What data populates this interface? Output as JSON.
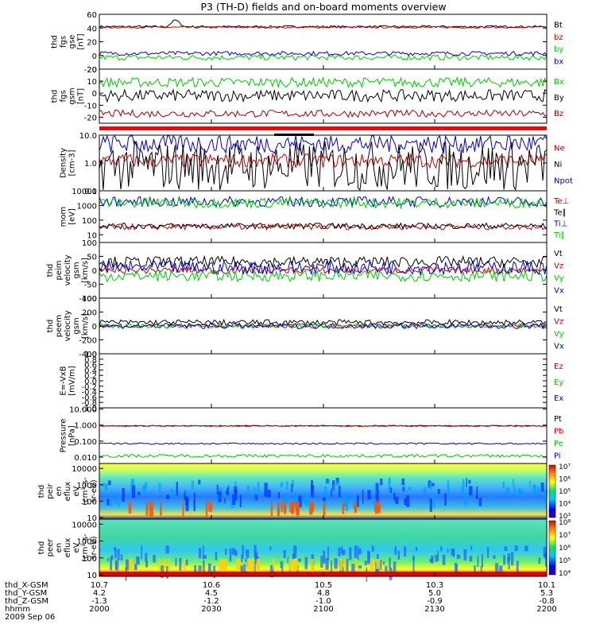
{
  "chart_data": {
    "type": "line",
    "title": "P3 (TH-D) fields and on-board moments overview",
    "panels": [
      {
        "id": "fgs_gse",
        "ylabel_lines": [
          "thd",
          "fgs",
          "gse",
          "[nT]"
        ],
        "ylim": [
          -20,
          60
        ],
        "ticks": [
          -20,
          0,
          20,
          40,
          60
        ],
        "series": [
          {
            "name": "Bt",
            "color": "#000000",
            "base": 42,
            "amp": 1.5,
            "spikes": [
              [
                0.17,
                10
              ]
            ]
          },
          {
            "name": "bz",
            "color": "#cc0000",
            "base": 41,
            "amp": 1.2
          },
          {
            "name": "by",
            "color": "#00cc00",
            "base": -3,
            "amp": 4
          },
          {
            "name": "bx",
            "color": "#0000cc",
            "base": 3,
            "amp": 3
          }
        ]
      },
      {
        "id": "fgs_gsm",
        "ylabel_lines": [
          "thd",
          "fgs",
          "gsm",
          "[nT]"
        ],
        "ylim": [
          -25,
          20
        ],
        "ticks": [
          -20,
          -10,
          0,
          10,
          20
        ],
        "series": [
          {
            "name": "Bx",
            "color": "#00cc00",
            "base": 9,
            "amp": 4
          },
          {
            "name": "By",
            "color": "#000000",
            "base": -2,
            "amp": 5
          },
          {
            "name": "Bz",
            "color": "#aa0000",
            "base": -17,
            "amp": 3
          }
        ]
      },
      {
        "id": "density",
        "ylabel_lines": [
          "Density",
          "[cm-3]"
        ],
        "log": true,
        "ylim": [
          0.1,
          10
        ],
        "ticks": [
          0.1,
          1.0,
          10.0
        ],
        "tick_labels": [
          "0.1",
          "1.0",
          "10.0"
        ],
        "series": [
          {
            "name": "Ne",
            "color": "#cc0000",
            "base": 1.2,
            "amp": 0.25
          },
          {
            "name": "Ni",
            "color": "#000000",
            "base": 0.8,
            "amp": 0.9
          },
          {
            "name": "Npot",
            "color": "#0000cc",
            "base": 5,
            "amp": 0.35
          }
        ]
      },
      {
        "id": "temperature",
        "ylabel_lines": [
          "mom",
          "[eV]"
        ],
        "log": true,
        "ylim": [
          3,
          10000
        ],
        "ticks": [
          10,
          100,
          1000,
          10000
        ],
        "tick_labels": [
          "10",
          "100",
          "1000",
          "10000"
        ],
        "series": [
          {
            "name": "Te⊥",
            "color": "#cc0000",
            "base": 35,
            "amp": 0.2
          },
          {
            "name": "Te∥",
            "color": "#000000",
            "base": 40,
            "amp": 0.2
          },
          {
            "name": "Ti⊥",
            "color": "#0000cc",
            "base": 1800,
            "amp": 0.35
          },
          {
            "name": "Ti∥",
            "color": "#00cc00",
            "base": 1500,
            "amp": 0.35
          }
        ]
      },
      {
        "id": "peim_velocity",
        "ylabel_lines": [
          "thd",
          "peim",
          "velocity",
          "gsm",
          "[km/s]"
        ],
        "ylim": [
          -100,
          100
        ],
        "ticks": [
          -100,
          -50,
          0,
          50,
          100
        ],
        "series": [
          {
            "name": "Vt",
            "color": "#000000",
            "base": 30,
            "amp": 20
          },
          {
            "name": "Vz",
            "color": "#cc0000",
            "base": 0,
            "amp": 12
          },
          {
            "name": "Vy",
            "color": "#00cc00",
            "base": -20,
            "amp": 20
          },
          {
            "name": "Vx",
            "color": "#0000cc",
            "base": 10,
            "amp": 25
          }
        ]
      },
      {
        "id": "peem_velocity",
        "ylabel_lines": [
          "thd",
          "peem",
          "velocity",
          "gsm",
          "[km/s]"
        ],
        "ylim": [
          -400,
          400
        ],
        "ticks": [
          -400,
          -200,
          0,
          200,
          400
        ],
        "series": [
          {
            "name": "Vt",
            "color": "#000000",
            "base": 50,
            "amp": 40
          },
          {
            "name": "Vz",
            "color": "#cc0000",
            "base": 0,
            "amp": 30
          },
          {
            "name": "Vy",
            "color": "#00cc00",
            "base": 0,
            "amp": 30
          },
          {
            "name": "Vx",
            "color": "#0000cc",
            "base": 0,
            "amp": 40
          }
        ]
      },
      {
        "id": "efield",
        "ylabel_lines": [
          "E=-VxB",
          "[mV/m]"
        ],
        "ylim": [
          -1,
          1
        ],
        "ticks": [
          -1.0,
          -0.8,
          -0.6,
          -0.4,
          -0.2,
          0.0,
          0.2,
          0.4,
          0.6,
          0.8,
          1.0
        ],
        "tick_labels": [
          "-1.0",
          "-0.8",
          "-0.6",
          "-0.4",
          "-0.2",
          "0.0",
          "0.2",
          "0.4",
          "0.6",
          "0.8",
          "1.0"
        ],
        "series": [
          {
            "name": "Ez",
            "color": "#cc0000"
          },
          {
            "name": "Ey",
            "color": "#00cc00"
          },
          {
            "name": "Ex",
            "color": "#0000cc"
          }
        ]
      },
      {
        "id": "pressure",
        "ylabel_lines": [
          "Pressure",
          "[nPa]"
        ],
        "log": true,
        "ylim": [
          0.004,
          12
        ],
        "ticks": [
          0.01,
          0.1,
          1,
          10
        ],
        "tick_labels": [
          "0.010",
          "0.100",
          "1.000",
          "10.000"
        ],
        "series": [
          {
            "name": "Pt",
            "color": "#000000",
            "base": 0.9,
            "amp": 0.03
          },
          {
            "name": "Pb",
            "color": "#cc0000",
            "base": 0.88,
            "amp": 0.03
          },
          {
            "name": "Pe",
            "color": "#00cc00",
            "base": 0.012,
            "amp": 0.1
          },
          {
            "name": "Pi",
            "color": "#0000cc",
            "base": 0.07,
            "amp": 0.05
          }
        ]
      },
      {
        "id": "peir_spectrogram",
        "type": "spectrogram",
        "ylabel_lines": [
          "thd",
          "peir",
          "en",
          "eflux",
          "eV",
          "(cm²-s-",
          "sr-eV)"
        ],
        "ylim": [
          8,
          20000
        ],
        "ticks": [
          10,
          100,
          1000,
          10000
        ],
        "tick_labels": [
          "10",
          "100",
          "1000",
          "10000"
        ],
        "colorbar": {
          "ticks": [
            "10³",
            "10⁴",
            "10⁵",
            "10⁶",
            "10⁷"
          ]
        }
      },
      {
        "id": "peer_spectrogram",
        "type": "spectrogram",
        "ylabel_lines": [
          "thd",
          "peer",
          "en",
          "eflux",
          "eV",
          "(cm²-s-",
          "sr-eV)"
        ],
        "ylim": [
          8,
          20000
        ],
        "ticks": [
          10,
          100,
          1000,
          10000
        ],
        "tick_labels": [
          "10",
          "100",
          "1000",
          "10000"
        ],
        "colorbar": {
          "ticks": [
            "10⁴",
            "10⁵",
            "10⁶",
            "10⁷",
            "10⁸"
          ]
        }
      }
    ],
    "x_axis": {
      "rows": [
        {
          "label": "thd_X-GSM",
          "values": [
            "10.7",
            "10.6",
            "10.5",
            "10.3",
            "10.1"
          ]
        },
        {
          "label": "thd_Y-GSM",
          "values": [
            "4.2",
            "4.5",
            "4.8",
            "5.0",
            "5.3"
          ]
        },
        {
          "label": "thd_Z-GSM",
          "values": [
            "-1.3",
            "-1.2",
            "-1.0",
            "-0.9",
            "-0.8"
          ]
        },
        {
          "label": "hhmm",
          "values": [
            "2000",
            "2030",
            "2100",
            "2130",
            "2200"
          ]
        }
      ],
      "date": "2009 Sep 06"
    }
  }
}
